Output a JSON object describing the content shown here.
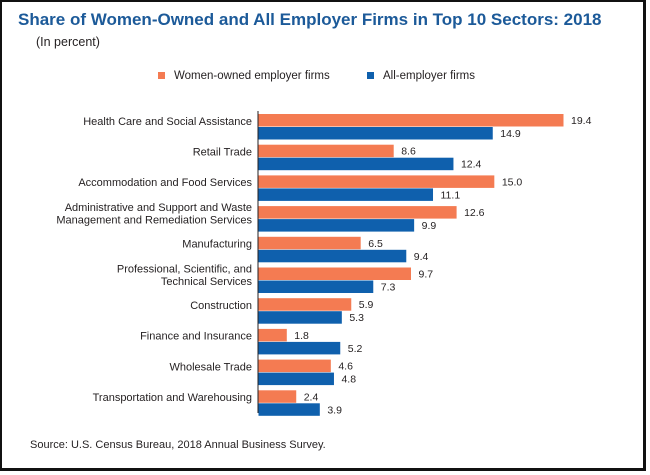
{
  "chart_data": {
    "type": "bar",
    "orientation": "horizontal",
    "title": "Share of Women-Owned and All Employer Firms in Top 10 Sectors: 2018",
    "subtitle": "(In percent)",
    "categories": [
      [
        "Health Care and Social Assistance"
      ],
      [
        "Retail Trade"
      ],
      [
        "Accommodation and Food Services"
      ],
      [
        "Administrative and Support and Waste",
        "Management and Remediation Services"
      ],
      [
        "Manufacturing"
      ],
      [
        "Professional, Scientific, and",
        "Technical Services"
      ],
      [
        "Construction"
      ],
      [
        "Finance and Insurance"
      ],
      [
        "Wholesale Trade"
      ],
      [
        "Transportation and Warehousing"
      ]
    ],
    "series": [
      {
        "name": "Women-owned employer firms",
        "color": "#f47b52",
        "values": [
          19.4,
          8.6,
          15.0,
          12.6,
          6.5,
          9.7,
          5.9,
          1.8,
          4.6,
          2.4
        ]
      },
      {
        "name": "All-employer firms",
        "color": "#0f60ad",
        "values": [
          14.9,
          12.4,
          11.1,
          9.9,
          9.4,
          7.3,
          5.3,
          5.2,
          4.8,
          3.9
        ]
      }
    ],
    "legend_position": "top",
    "grid": false
  },
  "source": "Source: U.S. Census Bureau, 2018 Annual Business Survey."
}
